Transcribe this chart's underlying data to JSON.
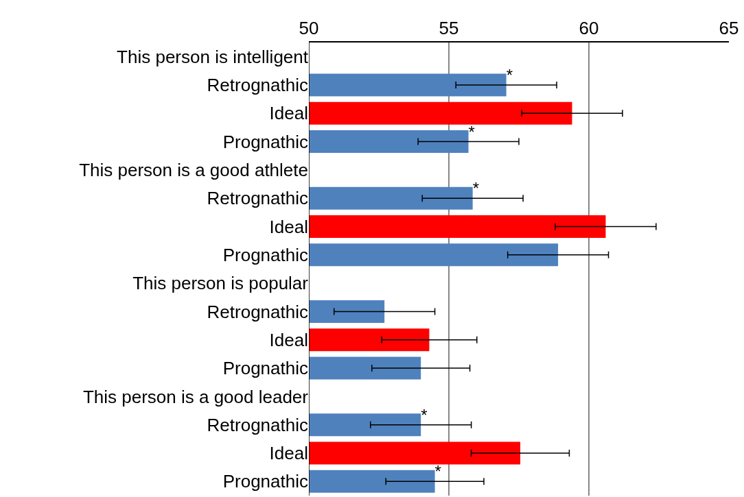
{
  "chart_data": {
    "type": "bar",
    "orientation": "horizontal",
    "categories": [
      "This person is intelligent",
      "Retrognathic",
      "Ideal",
      "Prognathic",
      "This person is a good athlete",
      "Retrognathic",
      "Ideal",
      "Prognathic",
      "This person is popular",
      "Retrognathic",
      "Ideal",
      "Prognathic",
      "This person is a good leader",
      "Retrognathic",
      "Ideal",
      "Prognathic"
    ],
    "values": [
      null,
      57.05,
      59.4,
      55.7,
      null,
      55.85,
      60.6,
      58.9,
      null,
      52.7,
      54.3,
      54.0,
      null,
      54.0,
      57.55,
      54.5
    ],
    "errors": [
      null,
      1.8,
      1.8,
      1.8,
      null,
      1.8,
      1.8,
      1.8,
      null,
      1.8,
      1.7,
      1.75,
      null,
      1.8,
      1.75,
      1.75
    ],
    "colors": [
      "#4f81bd",
      "#4f81bd",
      "#ff0000",
      "#4f81bd",
      "#4f81bd",
      "#4f81bd",
      "#ff0000",
      "#4f81bd",
      "#4f81bd",
      "#4f81bd",
      "#ff0000",
      "#4f81bd",
      "#4f81bd",
      "#4f81bd",
      "#ff0000",
      "#4f81bd"
    ],
    "value_labels": [
      null,
      "*",
      null,
      "*",
      null,
      "*",
      null,
      null,
      null,
      null,
      null,
      null,
      null,
      "*",
      null,
      "*"
    ],
    "xlim": [
      50,
      65
    ],
    "xticks": [
      50,
      55,
      60,
      65
    ],
    "grid": "x"
  }
}
